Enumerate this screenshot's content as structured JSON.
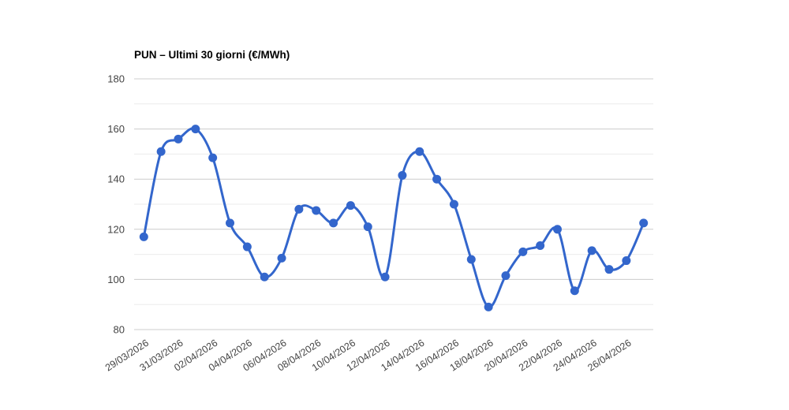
{
  "page": {
    "background": "#ffffff"
  },
  "chart_data": {
    "type": "line",
    "title": "PUN – Ultimi 30 giorni (€/MWh)",
    "xlabel": "",
    "ylabel": "",
    "x": [
      "29/03/2026",
      "30/03/2026",
      "31/03/2026",
      "01/04/2026",
      "02/04/2026",
      "03/04/2026",
      "04/04/2026",
      "05/04/2026",
      "06/04/2026",
      "07/04/2026",
      "08/04/2026",
      "09/04/2026",
      "10/04/2026",
      "11/04/2026",
      "12/04/2026",
      "13/04/2026",
      "14/04/2026",
      "15/04/2026",
      "16/04/2026",
      "17/04/2026",
      "18/04/2026",
      "19/04/2026",
      "20/04/2026",
      "21/04/2026",
      "22/04/2026",
      "23/04/2026",
      "24/04/2026",
      "25/04/2026",
      "26/04/2026",
      "27/04/2026"
    ],
    "values": [
      117,
      151,
      156,
      160,
      148.5,
      122.5,
      113,
      101,
      108.5,
      128,
      127.5,
      122.5,
      129.5,
      121,
      101,
      141.5,
      151,
      140,
      130,
      108,
      89,
      101.5,
      111,
      113.5,
      120,
      95.5,
      111.5,
      104,
      107.5,
      122.5
    ],
    "x_tick_labels": [
      "29/03/2026",
      "31/03/2026",
      "02/04/2026",
      "04/04/2026",
      "06/04/2026",
      "08/04/2026",
      "10/04/2026",
      "12/04/2026",
      "14/04/2026",
      "16/04/2026",
      "18/04/2026",
      "20/04/2026",
      "22/04/2026",
      "24/04/2026",
      "26/04/2026"
    ],
    "x_tick_step": 2,
    "x_tick_angle_deg": -33,
    "y_ticks": [
      80,
      100,
      120,
      140,
      160,
      180
    ],
    "y_minor_ticks": [
      90,
      110,
      130,
      150,
      170
    ],
    "ylim": [
      80,
      180
    ],
    "grid": true,
    "legend": "none",
    "smooth": true,
    "colors": {
      "series": "#3366cc",
      "grid_major": "#cccccc",
      "grid_minor": "#ebebeb",
      "axis_label": "#444444",
      "title": "#000000",
      "background": "#ffffff"
    }
  }
}
